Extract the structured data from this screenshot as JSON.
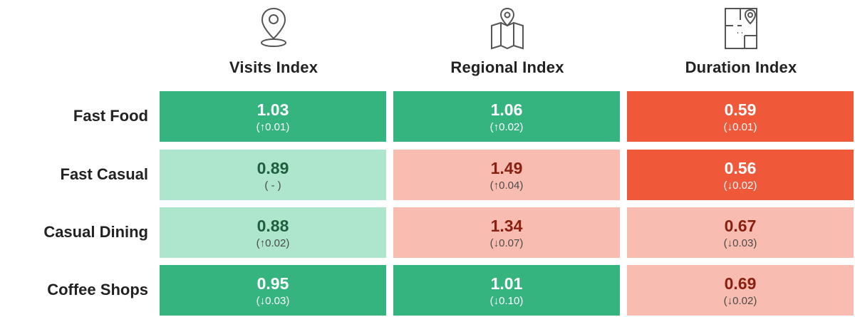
{
  "chart_data": {
    "type": "table",
    "columns": [
      {
        "label": "Visits Index",
        "icon": "location-pin-icon"
      },
      {
        "label": "Regional Index",
        "icon": "map-pin-icon"
      },
      {
        "label": "Duration Index",
        "icon": "floorplan-pin-icon"
      }
    ],
    "rows": [
      {
        "label": "Fast Food",
        "cells": [
          {
            "value": "1.03",
            "change": "(↑0.01)",
            "tone": "strong-good"
          },
          {
            "value": "1.06",
            "change": "(↑0.02)",
            "tone": "strong-good"
          },
          {
            "value": "0.59",
            "change": "(↓0.01)",
            "tone": "strong-bad"
          }
        ]
      },
      {
        "label": "Fast Casual",
        "cells": [
          {
            "value": "0.89",
            "change": "( - )",
            "tone": "light-good"
          },
          {
            "value": "1.49",
            "change": "(↑0.04)",
            "tone": "light-bad"
          },
          {
            "value": "0.56",
            "change": "(↓0.02)",
            "tone": "strong-bad"
          }
        ]
      },
      {
        "label": "Casual Dining",
        "cells": [
          {
            "value": "0.88",
            "change": "(↑0.02)",
            "tone": "light-good"
          },
          {
            "value": "1.34",
            "change": "(↓0.07)",
            "tone": "light-bad"
          },
          {
            "value": "0.67",
            "change": "(↓0.03)",
            "tone": "light-bad"
          }
        ]
      },
      {
        "label": "Coffee Shops",
        "cells": [
          {
            "value": "0.95",
            "change": "(↓0.03)",
            "tone": "strong-good"
          },
          {
            "value": "1.01",
            "change": "(↓0.10)",
            "tone": "strong-good"
          },
          {
            "value": "0.69",
            "change": "(↓0.02)",
            "tone": "light-bad"
          }
        ]
      }
    ]
  },
  "colors": {
    "strong_good": "#35b47f",
    "light_good": "#aee5cd",
    "strong_bad": "#f0583a",
    "light_bad": "#f8bdb0"
  }
}
